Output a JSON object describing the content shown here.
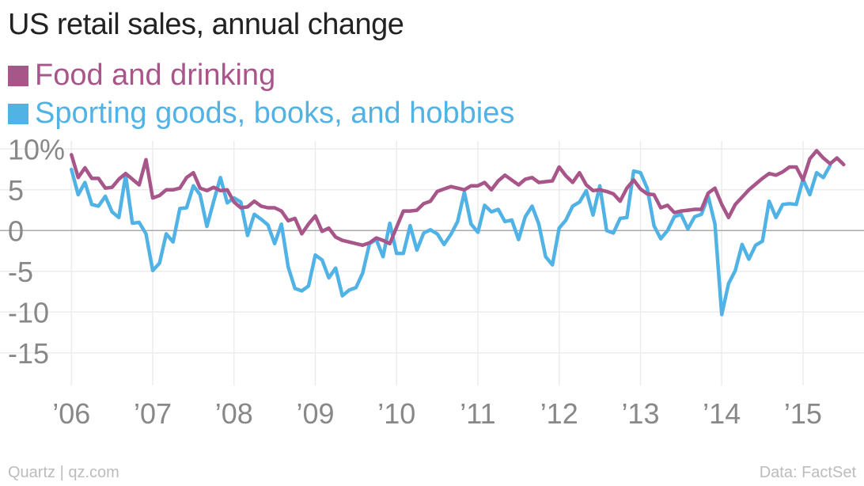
{
  "title": "US retail sales, annual change",
  "footer": {
    "source_left": "Quartz | qz.com",
    "source_right": "Data: FactSet"
  },
  "colors": {
    "food": "#a8558a",
    "sporting": "#51b2e5",
    "grid": "#ececec",
    "zero": "#aaaaaa",
    "tick": "#888888"
  },
  "chart_data": {
    "type": "line",
    "ylim": [
      -19,
      11
    ],
    "y_ticks": [
      10,
      5,
      0,
      -5,
      -10,
      -15
    ],
    "y_tick_labels": [
      "10%",
      "5",
      "0",
      "-5",
      "-10",
      "-15"
    ],
    "x_range": [
      2005.9,
      2015.75
    ],
    "x_ticks": [
      2006,
      2007,
      2008,
      2009,
      2010,
      2011,
      2012,
      2013,
      2014,
      2015
    ],
    "x_tick_labels": [
      "’06",
      "’07",
      "’08",
      "’09",
      "’10",
      "’11",
      "’12",
      "’13",
      "’14",
      "’15"
    ],
    "series": [
      {
        "name": "Food and drinking",
        "color": "#a8558a",
        "start": "2006-01",
        "values": [
          9.3,
          6.5,
          7.7,
          6.4,
          6.4,
          5.2,
          5.3,
          6.3,
          7.0,
          6.3,
          5.6,
          8.7,
          4.0,
          4.3,
          5.0,
          5.0,
          5.2,
          6.5,
          7.1,
          5.2,
          4.9,
          5.3,
          4.9,
          5.0,
          3.5,
          2.8,
          2.9,
          3.6,
          3.0,
          2.8,
          2.8,
          2.4,
          1.2,
          1.5,
          -0.4,
          0.8,
          1.8,
          -0.1,
          0.3,
          -0.8,
          -1.2,
          -1.4,
          -1.6,
          -1.8,
          -1.5,
          -0.9,
          -1.2,
          -1.6,
          0.4,
          2.4,
          2.4,
          2.5,
          3.3,
          3.6,
          4.8,
          5.1,
          5.4,
          5.2,
          5.0,
          5.5,
          5.5,
          5.9,
          5.0,
          6.1,
          6.8,
          6.2,
          5.6,
          6.3,
          6.5,
          5.9,
          6.0,
          6.1,
          7.8,
          6.7,
          5.9,
          7.1,
          5.6,
          4.9,
          5.0,
          4.8,
          4.5,
          3.6,
          5.2,
          6.2,
          5.1,
          4.5,
          4.4,
          2.8,
          3.1,
          2.2,
          2.4,
          2.5,
          2.6,
          2.6,
          4.6,
          5.2,
          3.2,
          1.6,
          3.2,
          4.1,
          5.0,
          5.7,
          6.4,
          7.0,
          6.8,
          7.2,
          7.8,
          7.8,
          6.2,
          8.8,
          9.8,
          8.9,
          8.2,
          8.9,
          8.1
        ]
      },
      {
        "name": "Sporting goods, books, and hobbies",
        "color": "#51b2e5",
        "start": "2006-01",
        "values": [
          7.5,
          4.4,
          5.9,
          3.2,
          3.0,
          4.2,
          2.3,
          1.6,
          6.8,
          0.9,
          1.0,
          -0.4,
          -4.9,
          -4.0,
          -0.4,
          -1.4,
          2.7,
          2.8,
          5.5,
          4.4,
          0.5,
          3.6,
          6.5,
          3.4,
          4.0,
          3.5,
          -0.6,
          2.0,
          1.4,
          0.7,
          -1.6,
          0.8,
          -4.5,
          -7.1,
          -7.4,
          -6.8,
          -3.0,
          -3.6,
          -5.8,
          -4.6,
          -8.0,
          -7.3,
          -7.0,
          -5.2,
          -1.6,
          -1.1,
          -3.2,
          0.9,
          -2.8,
          -2.8,
          0.6,
          -2.4,
          -0.3,
          0.1,
          -0.4,
          -1.7,
          -0.5,
          1.1,
          4.7,
          0.8,
          -0.2,
          3.1,
          2.3,
          2.6,
          1.1,
          1.3,
          -1.1,
          1.7,
          3.0,
          0.8,
          -3.2,
          -4.2,
          0.3,
          1.3,
          3.0,
          3.5,
          4.9,
          1.9,
          5.5,
          0.0,
          -0.3,
          1.5,
          1.6,
          7.3,
          7.1,
          5.2,
          0.6,
          -1.0,
          0.0,
          1.7,
          2.0,
          0.2,
          1.7,
          2.0,
          4.2,
          0.8,
          -10.3,
          -6.5,
          -4.9,
          -1.7,
          -3.5,
          -1.8,
          -1.3,
          3.6,
          1.6,
          3.2,
          3.3,
          3.2,
          6.3,
          4.4,
          7.1,
          6.5,
          8.0
        ]
      }
    ]
  }
}
